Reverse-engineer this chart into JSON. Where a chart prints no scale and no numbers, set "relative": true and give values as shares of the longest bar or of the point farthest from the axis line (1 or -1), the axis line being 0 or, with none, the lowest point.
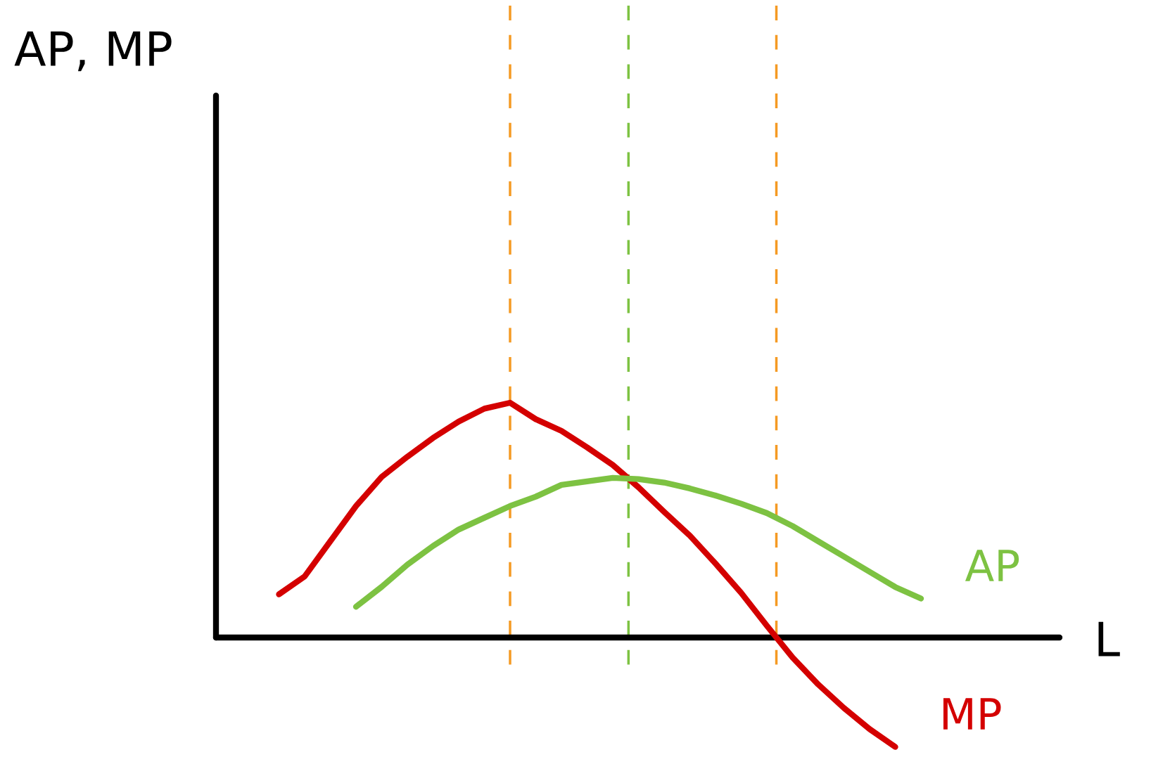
{
  "chart_data": {
    "type": "line",
    "relative": true,
    "xlabel": "L",
    "annotations": [
      "AP, MP"
    ],
    "legend": false,
    "marker": "none",
    "line_style": "solid",
    "categories": [
      null,
      null,
      null,
      null,
      null,
      null,
      null,
      null,
      null,
      null,
      null,
      null,
      null,
      null,
      null,
      null,
      null,
      null,
      null,
      null,
      null,
      null,
      null,
      null,
      null,
      null
    ],
    "series": [
      {
        "name": "MP",
        "color": "#d40000",
        "values": [
          0.184,
          0.26,
          0.41,
          0.56,
          0.684,
          0.77,
          0.85,
          0.92,
          0.975,
          1.0,
          0.93,
          0.88,
          0.81,
          0.735,
          0.64,
          0.535,
          0.434,
          0.315,
          0.19,
          0.05,
          -0.085,
          -0.2,
          -0.3,
          -0.39,
          -0.466,
          null
        ]
      },
      {
        "name": "AP",
        "color": "#7dc242",
        "values": [
          null,
          null,
          null,
          0.131,
          0.216,
          0.31,
          0.39,
          0.46,
          0.51,
          0.56,
          0.6,
          0.65,
          0.665,
          0.68,
          0.675,
          0.66,
          0.635,
          0.605,
          0.57,
          0.53,
          0.475,
          0.41,
          0.345,
          0.28,
          0.215,
          0.166
        ]
      }
    ]
  }
}
